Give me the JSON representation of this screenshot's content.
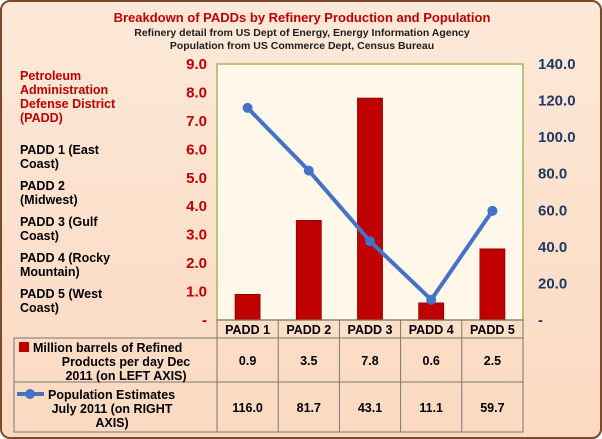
{
  "chart_data": {
    "type": "bar",
    "title": "Breakdown of PADDs by Refinery Production and Population",
    "subtitles": [
      "Refinery detail from US Dept of Energy, Energy Information Agency",
      "Population from US Commerce Dept, Census Bureau"
    ],
    "categories": [
      "PADD 1",
      "PADD 2",
      "PADD 3",
      "PADD 4",
      "PADD 5"
    ],
    "series": [
      {
        "name": "Million barrels of Refined Products per day Dec 2011 (on LEFT AXIS)",
        "name_lines": [
          "Million barrels of Refined",
          "Products per day Dec",
          "2011 (on LEFT AXIS)"
        ],
        "type": "bar",
        "axis": "left",
        "color": "#c00000",
        "values": [
          0.9,
          3.5,
          7.8,
          0.6,
          2.5
        ],
        "labels": [
          "0.9",
          "3.5",
          "7.8",
          "0.6",
          "2.5"
        ]
      },
      {
        "name": "Population Estimates July 2011 (on RIGHT AXIS)",
        "name_lines": [
          "Population Estimates",
          "July 2011 (on RIGHT",
          "AXIS)"
        ],
        "type": "line",
        "axis": "right",
        "color": "#4472c4",
        "values": [
          116.0,
          81.7,
          43.1,
          11.1,
          59.7
        ],
        "labels": [
          "116.0",
          "81.7",
          "43.1",
          "11.1",
          "59.7"
        ]
      }
    ],
    "left_axis": {
      "ylim": [
        0,
        9
      ],
      "ticks": [
        1,
        2,
        3,
        4,
        5,
        6,
        7,
        8,
        9
      ],
      "tick_labels": [
        "1.0",
        "2.0",
        "3.0",
        "4.0",
        "5.0",
        "6.0",
        "7.0",
        "8.0",
        "9.0"
      ],
      "zero_label": "-"
    },
    "right_axis": {
      "ylim": [
        0,
        140
      ],
      "ticks": [
        20,
        40,
        60,
        80,
        100,
        120,
        140
      ],
      "tick_labels": [
        "20.0",
        "40.0",
        "60.0",
        "80.0",
        "100.0",
        "120.0",
        "140.0"
      ],
      "zero_label": "-"
    },
    "grid": false,
    "legend": "data-table-bottom",
    "side_legend": {
      "heading_lines": [
        "Petroleum",
        "Administration",
        "Defense District",
        "(PADD)"
      ],
      "items": [
        [
          "PADD 1 (East",
          "Coast)"
        ],
        [
          "PADD 2",
          "(Midwest)"
        ],
        [
          "PADD 3 (Gulf",
          "Coast)"
        ],
        [
          "PADD 4 (Rocky",
          "Mountain)"
        ],
        [
          "PADD 5 (West",
          "Coast)"
        ]
      ]
    }
  }
}
